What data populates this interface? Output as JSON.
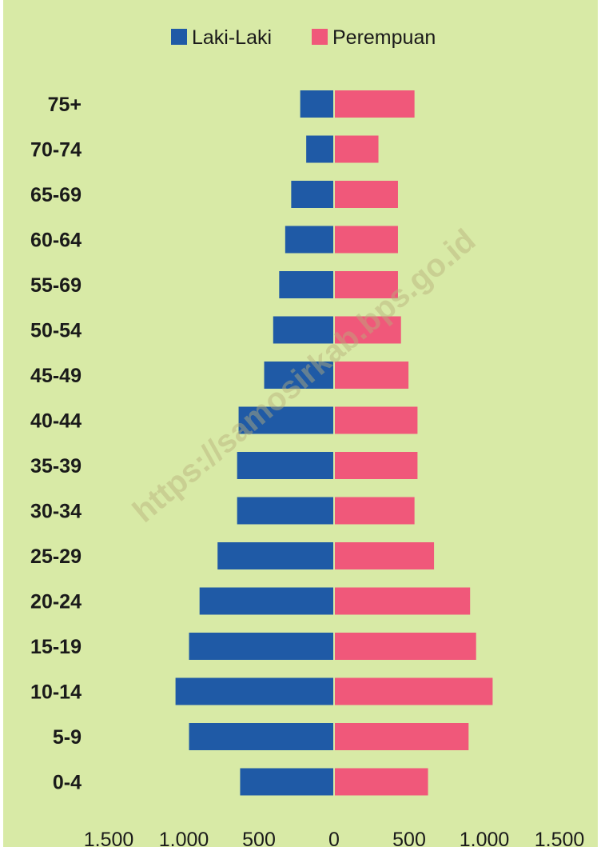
{
  "chart_data": {
    "type": "bar",
    "orientation": "horizontal-pyramid",
    "categories": [
      "75+",
      "70-74",
      "65-69",
      "60-64",
      "55-69",
      "50-54",
      "45-49",
      "40-44",
      "35-39",
      "30-34",
      "25-29",
      "20-24",
      "15-19",
      "10-14",
      "5-9",
      "0-4"
    ],
    "series": [
      {
        "name": "Laki-Laki",
        "color": "#1f5aa6",
        "side": "left",
        "values": [
          220,
          180,
          280,
          320,
          360,
          400,
          460,
          630,
          640,
          640,
          770,
          890,
          960,
          1050,
          960,
          620
        ]
      },
      {
        "name": "Perempuan",
        "color": "#f0587a",
        "side": "right",
        "values": [
          530,
          290,
          420,
          420,
          420,
          440,
          490,
          550,
          550,
          530,
          660,
          900,
          940,
          1050,
          890,
          620
        ]
      }
    ],
    "x_ticks": [
      "1.500",
      "1.000",
      "500",
      "0",
      "500",
      "1.000",
      "1.500"
    ],
    "xlim": [
      -1500,
      1500
    ],
    "legend_position": "top-center",
    "background": "#d8eaa6",
    "grid": false,
    "watermark": "https://samosirkab.bps.go.id"
  }
}
